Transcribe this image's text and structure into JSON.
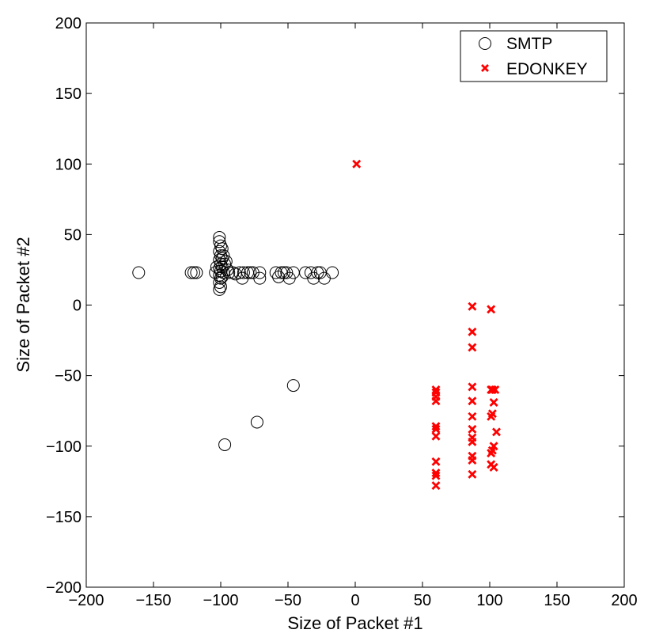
{
  "chart_data": {
    "type": "scatter",
    "title": "",
    "xlabel": "Size of Packet #1",
    "ylabel": "Size of Packet #2",
    "xlim": [
      -200,
      200
    ],
    "ylim": [
      -200,
      200
    ],
    "xticks": [
      "−200",
      "−150",
      "−100",
      "−50",
      "0",
      "50",
      "100",
      "150",
      "200"
    ],
    "yticks": [
      "−200",
      "−150",
      "−100",
      "−50",
      "0",
      "50",
      "100",
      "150",
      "200"
    ],
    "grid": false,
    "legend_position": "top-right",
    "series": [
      {
        "name": "SMTP",
        "marker": "circle",
        "color": "#000000",
        "points": [
          [
            -161,
            23
          ],
          [
            -122,
            23
          ],
          [
            -120,
            23
          ],
          [
            -118,
            23
          ],
          [
            -101,
            48
          ],
          [
            -101,
            45
          ],
          [
            -100,
            42
          ],
          [
            -101,
            38
          ],
          [
            -100,
            35
          ],
          [
            -101,
            32
          ],
          [
            -100,
            29
          ],
          [
            -101,
            26
          ],
          [
            -100,
            24
          ],
          [
            -101,
            21
          ],
          [
            -100,
            19
          ],
          [
            -101,
            16
          ],
          [
            -100,
            13
          ],
          [
            -101,
            11
          ],
          [
            -99,
            40
          ],
          [
            -99,
            33
          ],
          [
            -99,
            27
          ],
          [
            -99,
            20
          ],
          [
            -98,
            35
          ],
          [
            -98,
            23
          ],
          [
            -97,
            29
          ],
          [
            -96,
            31
          ],
          [
            -95,
            25
          ],
          [
            -94,
            23
          ],
          [
            -104,
            23
          ],
          [
            -103,
            27
          ],
          [
            -91,
            23
          ],
          [
            -89,
            22
          ],
          [
            -86,
            23
          ],
          [
            -84,
            19
          ],
          [
            -83,
            23
          ],
          [
            -80,
            23
          ],
          [
            -78,
            23
          ],
          [
            -76,
            23
          ],
          [
            -71,
            23
          ],
          [
            -71,
            19
          ],
          [
            -59,
            23
          ],
          [
            -57,
            20
          ],
          [
            -55,
            23
          ],
          [
            -53,
            23
          ],
          [
            -51,
            23
          ],
          [
            -49,
            19
          ],
          [
            -46,
            23
          ],
          [
            -37,
            23
          ],
          [
            -33,
            23
          ],
          [
            -31,
            19
          ],
          [
            -28,
            23
          ],
          [
            -26,
            23
          ],
          [
            -23,
            19
          ],
          [
            -17,
            23
          ],
          [
            -46,
            -57
          ],
          [
            -73,
            -83
          ],
          [
            -97,
            -99
          ]
        ]
      },
      {
        "name": "EDONKEY",
        "marker": "x",
        "color": "#ff0000",
        "points": [
          [
            1,
            100
          ],
          [
            60,
            -60
          ],
          [
            60,
            -62
          ],
          [
            60,
            -65
          ],
          [
            60,
            -68
          ],
          [
            60,
            -86
          ],
          [
            60,
            -88
          ],
          [
            60,
            -93
          ],
          [
            60,
            -111
          ],
          [
            60,
            -119
          ],
          [
            60,
            -121
          ],
          [
            60,
            -128
          ],
          [
            87,
            -1
          ],
          [
            87,
            -19
          ],
          [
            87,
            -30
          ],
          [
            87,
            -58
          ],
          [
            87,
            -68
          ],
          [
            87,
            -79
          ],
          [
            87,
            -88
          ],
          [
            87,
            -94
          ],
          [
            87,
            -97
          ],
          [
            87,
            -107
          ],
          [
            87,
            -110
          ],
          [
            87,
            -120
          ],
          [
            101,
            -3
          ],
          [
            101,
            -60
          ],
          [
            102,
            -60
          ],
          [
            104,
            -60
          ],
          [
            103,
            -69
          ],
          [
            102,
            -77
          ],
          [
            101,
            -79
          ],
          [
            105,
            -90
          ],
          [
            103,
            -100
          ],
          [
            102,
            -103
          ],
          [
            101,
            -105
          ],
          [
            101,
            -113
          ],
          [
            103,
            -115
          ]
        ]
      }
    ]
  }
}
